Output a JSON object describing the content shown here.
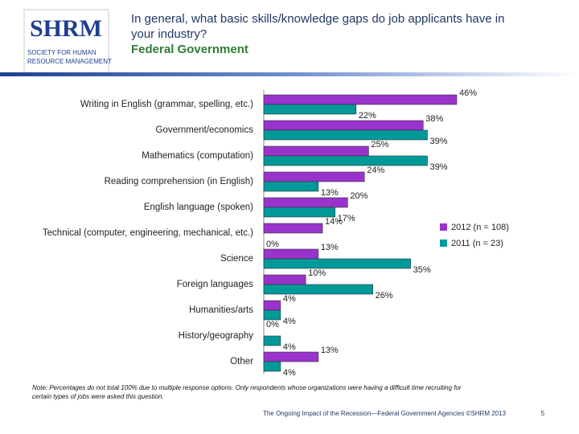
{
  "logo": {
    "name": "SHRM",
    "tagline_lines": [
      "SOCIETY FOR HUMAN",
      "RESOURCE MANAGEMENT"
    ]
  },
  "chart_data": {
    "type": "hbar",
    "title_lines": [
      "In general, what basic skills/knowledge gaps do job applicants have in",
      "your industry?"
    ],
    "subtitle": "Federal Government",
    "categories": [
      "Writing in English (grammar, spelling, etc.)",
      "Government/economics",
      "Mathematics (computation)",
      "Reading comprehension (in English)",
      "English language (spoken)",
      "Technical (computer, engineering, mechanical, etc.)",
      "Science",
      "Foreign languages",
      "Humanities/arts",
      "History/geography",
      "Other"
    ],
    "series": [
      {
        "name": "2012 (n = 108)",
        "color": "#9933cc",
        "values": [
          46,
          38,
          25,
          24,
          20,
          14,
          13,
          10,
          4,
          0,
          13
        ],
        "value_labels": [
          "46%",
          "38%",
          "25%",
          "24%",
          "20%",
          "14%",
          "13%",
          "10%",
          "4%",
          "0%",
          "13%"
        ]
      },
      {
        "name": "2011 (n = 23)",
        "color": "#009999",
        "values": [
          22,
          39,
          39,
          13,
          17,
          0,
          35,
          26,
          4,
          4,
          4
        ],
        "value_labels": [
          "22%",
          "39%",
          "39%",
          "13%",
          "17%",
          "0%",
          "35%",
          "26%",
          "4%",
          "4%",
          "4%"
        ]
      }
    ],
    "note_lines": [
      "Note: Percentages do not total 100% due to multiple response options. Only respondents whose organizations were having a difficult time recruiting for",
      "certain types of jobs were asked this question."
    ],
    "footer": "The Ongoing Impact of the Recession—Federal Government Agencies ©SHRM 2013",
    "page_number": "5"
  }
}
